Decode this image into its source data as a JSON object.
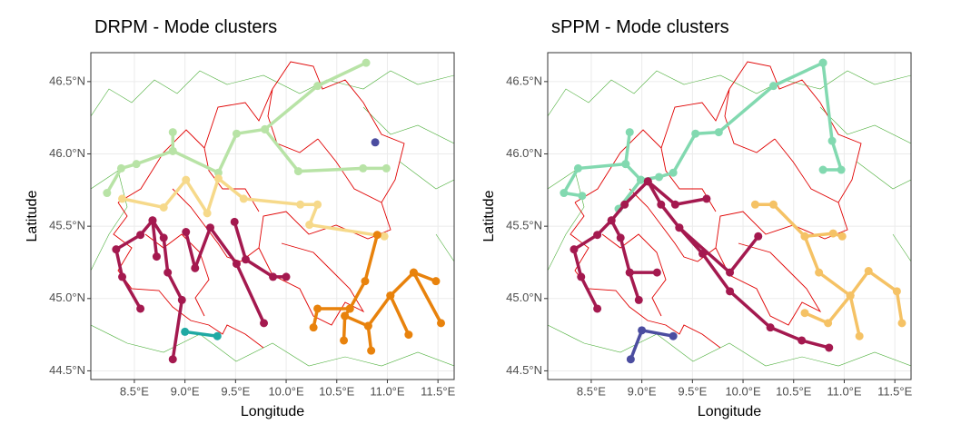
{
  "chart_data": [
    {
      "type": "line",
      "title": "DRPM - Mode clusters",
      "xlabel": "Longitude",
      "ylabel": "Latitude",
      "xlim": [
        8.07,
        11.66
      ],
      "ylim": [
        44.44,
        46.7
      ],
      "grid": true,
      "xticks": [
        {
          "value": 8.5,
          "label": "8.5°E"
        },
        {
          "value": 9.0,
          "label": "9.0°E"
        },
        {
          "value": 9.5,
          "label": "9.5°E"
        },
        {
          "value": 10.0,
          "label": "10.0°E"
        },
        {
          "value": 10.5,
          "label": "10.5°E"
        },
        {
          "value": 11.0,
          "label": "11.0°E"
        },
        {
          "value": 11.5,
          "label": "11.5°E"
        }
      ],
      "yticks": [
        {
          "value": 44.5,
          "label": "44.5°N"
        },
        {
          "value": 45.0,
          "label": "45.0°N"
        },
        {
          "value": 45.5,
          "label": "45.5°N"
        },
        {
          "value": 46.0,
          "label": "46.0°N"
        },
        {
          "value": 46.5,
          "label": "46.5°N"
        }
      ],
      "series": [
        {
          "color": "#b8e3a6",
          "x": [
            10.79,
            10.31,
            9.79,
            9.51,
            9.33,
            8.88,
            8.52,
            8.37,
            8.23,
            null,
            9.79,
            10.12,
            10.76,
            10.99,
            null,
            8.88,
            8.88
          ],
          "y": [
            46.63,
            46.47,
            46.17,
            46.14,
            45.87,
            46.02,
            45.93,
            45.9,
            45.73,
            null,
            46.17,
            45.88,
            45.9,
            45.9,
            null,
            46.15,
            46.02
          ]
        },
        {
          "color": "#4b4da0",
          "x": [
            10.88
          ],
          "y": [
            46.08
          ]
        },
        {
          "color": "#f6d98a",
          "x": [
            8.38,
            8.79,
            9.01,
            9.22,
            9.33,
            9.58,
            10.14,
            10.31,
            10.23,
            10.97
          ],
          "y": [
            45.69,
            45.63,
            45.82,
            45.59,
            45.83,
            45.69,
            45.65,
            45.65,
            45.51,
            45.43
          ]
        },
        {
          "color": "#a4194f",
          "x": [
            8.88,
            8.97,
            8.83,
            8.79,
            8.68,
            8.56,
            8.32,
            8.38,
            8.56,
            null,
            8.68,
            8.72,
            null,
            9.01,
            9.1,
            9.25,
            9.51,
            9.78,
            null,
            9.49,
            9.6,
            9.87,
            10.0
          ],
          "y": [
            44.58,
            44.99,
            45.18,
            45.42,
            45.54,
            45.44,
            45.34,
            45.15,
            44.93,
            null,
            45.54,
            45.29,
            null,
            45.46,
            45.21,
            45.49,
            45.24,
            44.83,
            null,
            45.53,
            45.27,
            45.15,
            45.15
          ]
        },
        {
          "color": "#e8820c",
          "x": [
            10.9,
            10.78,
            10.63,
            10.31,
            10.27,
            null,
            10.63,
            10.58,
            10.57,
            null,
            10.58,
            10.81,
            10.84,
            null,
            10.81,
            11.03,
            11.26,
            11.53,
            null,
            11.03,
            11.21,
            null,
            11.26,
            11.48
          ],
          "y": [
            45.44,
            45.12,
            44.93,
            44.93,
            44.8,
            null,
            44.93,
            44.88,
            44.71,
            null,
            44.88,
            44.81,
            44.64,
            null,
            44.81,
            45.02,
            45.18,
            44.83,
            null,
            45.02,
            44.75,
            null,
            45.18,
            45.12
          ]
        },
        {
          "color": "#1fa9a3",
          "x": [
            9.0,
            9.32
          ],
          "y": [
            44.77,
            44.74
          ]
        }
      ]
    },
    {
      "type": "line",
      "title": "sPPM - Mode clusters",
      "xlabel": "Longitude",
      "ylabel": "Latitude",
      "xlim": [
        8.07,
        11.66
      ],
      "ylim": [
        44.44,
        46.7
      ],
      "grid": true,
      "xticks": [
        {
          "value": 8.5,
          "label": "8.5°E"
        },
        {
          "value": 9.0,
          "label": "9.0°E"
        },
        {
          "value": 9.5,
          "label": "9.5°E"
        },
        {
          "value": 10.0,
          "label": "10.0°E"
        },
        {
          "value": 10.5,
          "label": "10.5°E"
        },
        {
          "value": 11.0,
          "label": "11.0°E"
        },
        {
          "value": 11.5,
          "label": "11.5°E"
        }
      ],
      "yticks": [
        {
          "value": 44.5,
          "label": "44.5°N"
        },
        {
          "value": 45.0,
          "label": "45.0°N"
        },
        {
          "value": 45.5,
          "label": "45.5°N"
        },
        {
          "value": 46.0,
          "label": "46.0°N"
        },
        {
          "value": 46.5,
          "label": "46.5°N"
        }
      ],
      "series": [
        {
          "color": "#82d9b0",
          "x": [
            10.79,
            10.3,
            9.76,
            9.53,
            9.31,
            9.17,
            8.99,
            8.77,
            null,
            8.99,
            8.84,
            8.88,
            null,
            8.84,
            8.37,
            8.23,
            8.41,
            null,
            10.79,
            10.88,
            10.97,
            10.79
          ],
          "y": [
            46.63,
            46.47,
            46.15,
            46.14,
            45.87,
            45.84,
            45.82,
            45.62,
            null,
            45.82,
            45.93,
            46.15,
            null,
            45.93,
            45.9,
            45.73,
            45.71,
            null,
            46.63,
            46.09,
            45.89,
            45.89
          ]
        },
        {
          "color": "#a4194f",
          "x": [
            8.97,
            8.88,
            8.79,
            8.7,
            8.56,
            8.33,
            8.4,
            8.56,
            null,
            8.88,
            9.15,
            null,
            8.7,
            8.83,
            9.06,
            9.19,
            9.37,
            9.6,
            9.87,
            10.27,
            10.58,
            10.85,
            null,
            9.37,
            9.87,
            10.15,
            null,
            9.06,
            9.33,
            9.64
          ],
          "y": [
            44.99,
            45.18,
            45.42,
            45.54,
            45.44,
            45.34,
            45.15,
            44.93,
            null,
            45.18,
            45.18,
            null,
            45.54,
            45.65,
            45.81,
            45.65,
            45.49,
            45.31,
            45.05,
            44.8,
            44.71,
            44.66,
            null,
            45.49,
            45.18,
            45.43,
            null,
            45.81,
            45.65,
            45.69
          ]
        },
        {
          "color": "#f5c265",
          "x": [
            10.12,
            10.3,
            10.61,
            10.89,
            10.98,
            null,
            10.61,
            10.75,
            11.06,
            11.15,
            null,
            11.06,
            11.24,
            11.52,
            11.57,
            null,
            11.06,
            10.84,
            10.61
          ],
          "y": [
            45.65,
            45.65,
            45.43,
            45.45,
            45.43,
            null,
            45.43,
            45.18,
            45.02,
            44.74,
            null,
            45.02,
            45.19,
            45.05,
            44.83,
            null,
            45.02,
            44.83,
            44.9
          ]
        },
        {
          "color": "#4b4da0",
          "x": [
            8.89,
            9.0,
            9.31
          ],
          "y": [
            44.58,
            44.78,
            44.74
          ]
        }
      ]
    }
  ]
}
